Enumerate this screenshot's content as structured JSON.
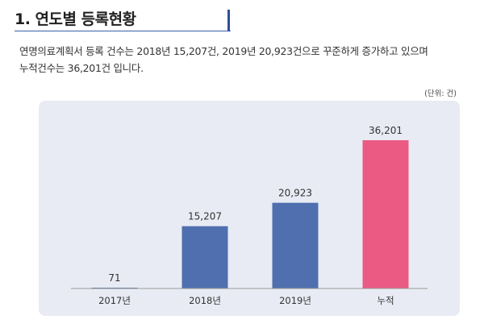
{
  "section": {
    "title": "1. 연도별 등록현황",
    "description_line1": "연명의료계획서 등록 건수는 2018년 15,207건, 2019년 20,923건으로 꾸준하게 증가하고 있으며",
    "description_line2": "누적건수는 36,201건 입니다.",
    "unit_note": "(단위: 건)"
  },
  "chart_data": {
    "type": "bar",
    "categories": [
      "2017년",
      "2018년",
      "2019년",
      "누적"
    ],
    "values": [
      71,
      15207,
      20923,
      36201
    ],
    "value_labels": [
      "71",
      "15,207",
      "20,923",
      "36,201"
    ],
    "colors": [
      "#4f6faf",
      "#4f6faf",
      "#4f6faf",
      "#ea5a83"
    ],
    "ylim": [
      0,
      36201
    ],
    "grid": false,
    "axis_color": "#999999"
  }
}
